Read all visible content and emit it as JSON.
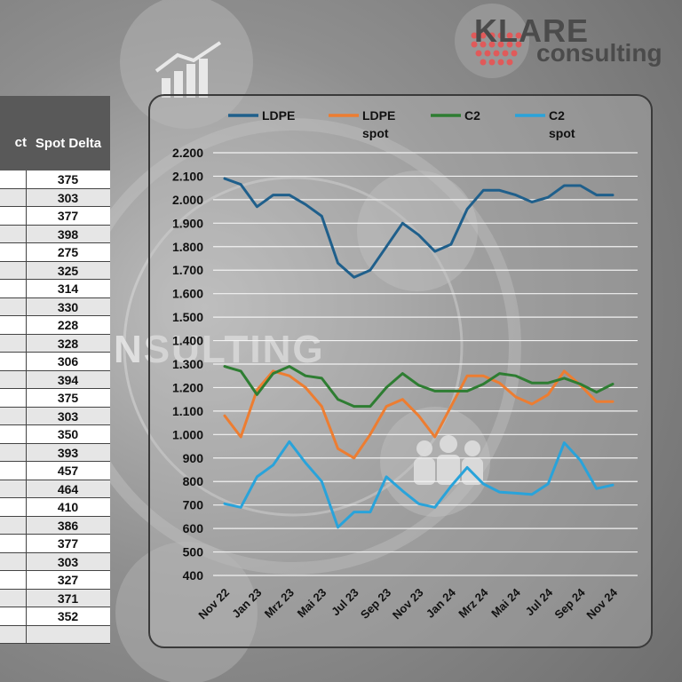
{
  "logo": {
    "line1": "KLARE",
    "line2": "consulting"
  },
  "background": {
    "watermark": "NSULTING"
  },
  "table": {
    "header_left": "ct",
    "header_right": "Spot Delta",
    "values": [
      "375",
      "303",
      "377",
      "398",
      "275",
      "325",
      "314",
      "330",
      "228",
      "328",
      "306",
      "394",
      "375",
      "303",
      "350",
      "393",
      "457",
      "464",
      "410",
      "386",
      "377",
      "303",
      "327",
      "371",
      "352",
      ""
    ]
  },
  "chart_data": {
    "type": "line",
    "x": [
      "Nov 22",
      "Dez 22",
      "Jan 23",
      "Feb 23",
      "Mrz 23",
      "Apr 23",
      "Mai 23",
      "Jun 23",
      "Jul 23",
      "Aug 23",
      "Sep 23",
      "Okt 23",
      "Nov 23",
      "Dez 23",
      "Jan 24",
      "Feb 24",
      "Mrz 24",
      "Apr 24",
      "Mai 24",
      "Jun 24",
      "Jul 24",
      "Aug 24",
      "Sep 24",
      "Okt 24",
      "Nov 24"
    ],
    "x_tick_labels": [
      "Nov 22",
      "Jan 23",
      "Mrz 23",
      "Mai 23",
      "Jul 23",
      "Sep 23",
      "Nov 23",
      "Jan 24",
      "Mrz 24",
      "Mai 24",
      "Jul 24",
      "Sep 24",
      "Nov 24"
    ],
    "ylim": [
      400,
      2200
    ],
    "yticks": [
      "2.200",
      "2.100",
      "2.000",
      "1.900",
      "1.800",
      "1.700",
      "1.600",
      "1.500",
      "1.400",
      "1.300",
      "1.200",
      "1.100",
      "1.000",
      "900",
      "800",
      "700",
      "600",
      "500",
      "400"
    ],
    "grid": true,
    "legend_position": "top",
    "series": [
      {
        "name": "LDPE",
        "color": "#1f5f8b",
        "values": [
          2090,
          2065,
          1970,
          2020,
          2020,
          1980,
          1930,
          1730,
          1670,
          1700,
          1800,
          1900,
          1850,
          1780,
          1810,
          1960,
          2040,
          2040,
          2020,
          1990,
          2010,
          2060,
          2060,
          2020,
          2020
        ]
      },
      {
        "name": "LDPE spot",
        "color": "#ed7d31",
        "values": [
          1080,
          990,
          1190,
          1270,
          1250,
          1200,
          1120,
          940,
          900,
          1000,
          1120,
          1150,
          1080,
          990,
          1120,
          1250,
          1250,
          1220,
          1160,
          1130,
          1170,
          1270,
          1210,
          1140,
          1140
        ]
      },
      {
        "name": "C2",
        "color": "#2e7d32",
        "values": [
          1290,
          1270,
          1170,
          1260,
          1290,
          1250,
          1240,
          1150,
          1120,
          1120,
          1200,
          1260,
          1210,
          1185,
          1185,
          1185,
          1215,
          1260,
          1250,
          1220,
          1220,
          1240,
          1215,
          1180,
          1215
        ]
      },
      {
        "name": "C2 spot",
        "color": "#29a3da",
        "values": [
          705,
          690,
          820,
          870,
          970,
          880,
          800,
          605,
          670,
          670,
          820,
          760,
          705,
          690,
          780,
          860,
          790,
          755,
          750,
          745,
          790,
          965,
          890,
          770,
          785
        ]
      }
    ]
  }
}
